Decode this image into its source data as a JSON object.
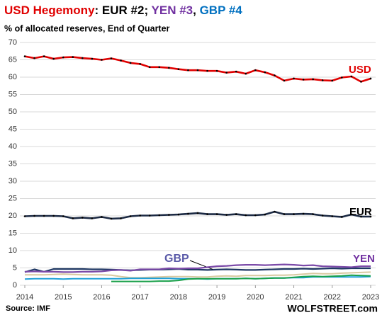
{
  "chart_data": {
    "type": "line",
    "title_parts": [
      {
        "text": "USD Hegemony",
        "color": "#e00000"
      },
      {
        "text": ": EUR #2; ",
        "color": "#000000"
      },
      {
        "text": "YEN #3",
        "color": "#7030a0"
      },
      {
        "text": ", ",
        "color": "#000000"
      },
      {
        "text": "GBP #4",
        "color": "#0070c0"
      }
    ],
    "subtitle": "% of allocated reserves, End of Quarter",
    "source": "Source: IMF",
    "watermark": "WOLFSTREET.com",
    "x": [
      2014,
      2014.25,
      2014.5,
      2014.75,
      2015,
      2015.25,
      2015.5,
      2015.75,
      2016,
      2016.25,
      2016.5,
      2016.75,
      2017,
      2017.25,
      2017.5,
      2017.75,
      2018,
      2018.25,
      2018.5,
      2018.75,
      2019,
      2019.25,
      2019.5,
      2019.75,
      2020,
      2020.25,
      2020.5,
      2020.75,
      2021,
      2021.25,
      2021.5,
      2021.75,
      2022,
      2022.25,
      2022.5,
      2022.75,
      2023
    ],
    "xlim": [
      2014,
      2023
    ],
    "xticks": [
      2014,
      2015,
      2016,
      2017,
      2018,
      2019,
      2020,
      2021,
      2022,
      2023
    ],
    "ylim": [
      0,
      70
    ],
    "yticks": [
      0,
      5,
      10,
      15,
      20,
      25,
      30,
      35,
      40,
      45,
      50,
      55,
      60,
      65,
      70
    ],
    "grid": true,
    "series": [
      {
        "color": "#d8c9a0",
        "values": [
          3.0,
          3.0,
          3.0,
          3.1,
          3.2,
          3.1,
          3.0,
          3.0,
          3.0,
          2.9,
          2.5,
          2.2,
          2.2,
          2.3,
          2.4,
          2.5,
          2.5,
          2.5,
          2.4,
          2.4,
          2.6,
          2.7,
          2.6,
          2.8,
          2.8,
          2.8,
          2.9,
          2.9,
          3.0,
          3.2,
          3.4,
          3.3,
          3.3,
          3.5,
          3.6,
          3.7,
          3.8
        ]
      },
      {
        "color": "#1ea0d8",
        "values": [
          1.8,
          1.9,
          1.9,
          1.9,
          1.8,
          1.9,
          1.9,
          1.9,
          1.9,
          1.9,
          1.9,
          2.0,
          2.0,
          2.0,
          2.0,
          2.0,
          1.9,
          1.9,
          1.9,
          1.8,
          1.9,
          1.9,
          1.9,
          2.0,
          1.9,
          2.0,
          2.1,
          2.1,
          2.2,
          2.2,
          2.4,
          2.4,
          2.4,
          2.4,
          2.4,
          2.4,
          2.5
        ]
      },
      {
        "color": "#1aa04a",
        "values": [
          null,
          null,
          null,
          null,
          null,
          null,
          null,
          null,
          null,
          1.1,
          1.1,
          1.1,
          1.1,
          1.1,
          1.2,
          1.2,
          1.4,
          1.8,
          1.9,
          1.9,
          1.9,
          1.9,
          1.9,
          2.0,
          1.9,
          2.0,
          2.1,
          2.1,
          2.3,
          2.5,
          2.6,
          2.5,
          2.6,
          2.7,
          2.9,
          2.8,
          2.7
        ]
      },
      {
        "name": "GBP",
        "color": "#1f3864",
        "label_color": "#5a5aa8",
        "values": [
          3.8,
          4.6,
          3.9,
          4.7,
          4.7,
          4.7,
          4.7,
          4.6,
          4.6,
          4.5,
          4.4,
          4.3,
          4.4,
          4.5,
          4.5,
          4.6,
          4.7,
          4.5,
          4.5,
          4.4,
          4.5,
          4.6,
          4.5,
          4.4,
          4.4,
          4.5,
          4.6,
          4.7,
          4.7,
          4.8,
          4.7,
          4.8,
          4.9,
          4.8,
          4.9,
          4.9,
          4.9
        ]
      },
      {
        "name": "YEN",
        "color": "#7b4aa8",
        "label_color": "#7030a0",
        "values": [
          3.9,
          4.0,
          3.9,
          3.9,
          3.8,
          3.8,
          3.9,
          3.9,
          4.0,
          4.3,
          4.4,
          4.2,
          4.6,
          4.6,
          4.6,
          4.9,
          4.8,
          4.9,
          4.9,
          5.2,
          5.5,
          5.6,
          5.8,
          5.9,
          5.9,
          5.8,
          5.9,
          6.0,
          5.9,
          5.7,
          5.8,
          5.5,
          5.4,
          5.3,
          5.2,
          5.5,
          5.5
        ]
      },
      {
        "name": "EUR",
        "color": "#1c2a44",
        "label_color": "#000000",
        "marker_color": "#000000",
        "values": [
          19.9,
          20.0,
          20.0,
          20.0,
          19.9,
          19.3,
          19.5,
          19.3,
          19.7,
          19.2,
          19.3,
          19.9,
          20.1,
          20.1,
          20.2,
          20.3,
          20.4,
          20.6,
          20.8,
          20.5,
          20.5,
          20.3,
          20.5,
          20.2,
          20.2,
          20.4,
          21.2,
          20.5,
          20.5,
          20.6,
          20.5,
          20.1,
          19.9,
          19.7,
          20.4,
          19.8,
          19.8
        ]
      },
      {
        "name": "USD",
        "color": "#e00000",
        "label_color": "#e00000",
        "marker_color": "#000000",
        "values": [
          66.0,
          65.5,
          66.0,
          65.3,
          65.7,
          65.8,
          65.5,
          65.3,
          65.0,
          65.4,
          64.8,
          64.1,
          63.8,
          62.9,
          62.9,
          62.7,
          62.3,
          62.0,
          62.0,
          61.8,
          61.8,
          61.3,
          61.6,
          61.0,
          62.0,
          61.4,
          60.5,
          59.0,
          59.6,
          59.3,
          59.4,
          59.1,
          59.0,
          59.9,
          60.2,
          58.7,
          59.6
        ]
      }
    ]
  }
}
